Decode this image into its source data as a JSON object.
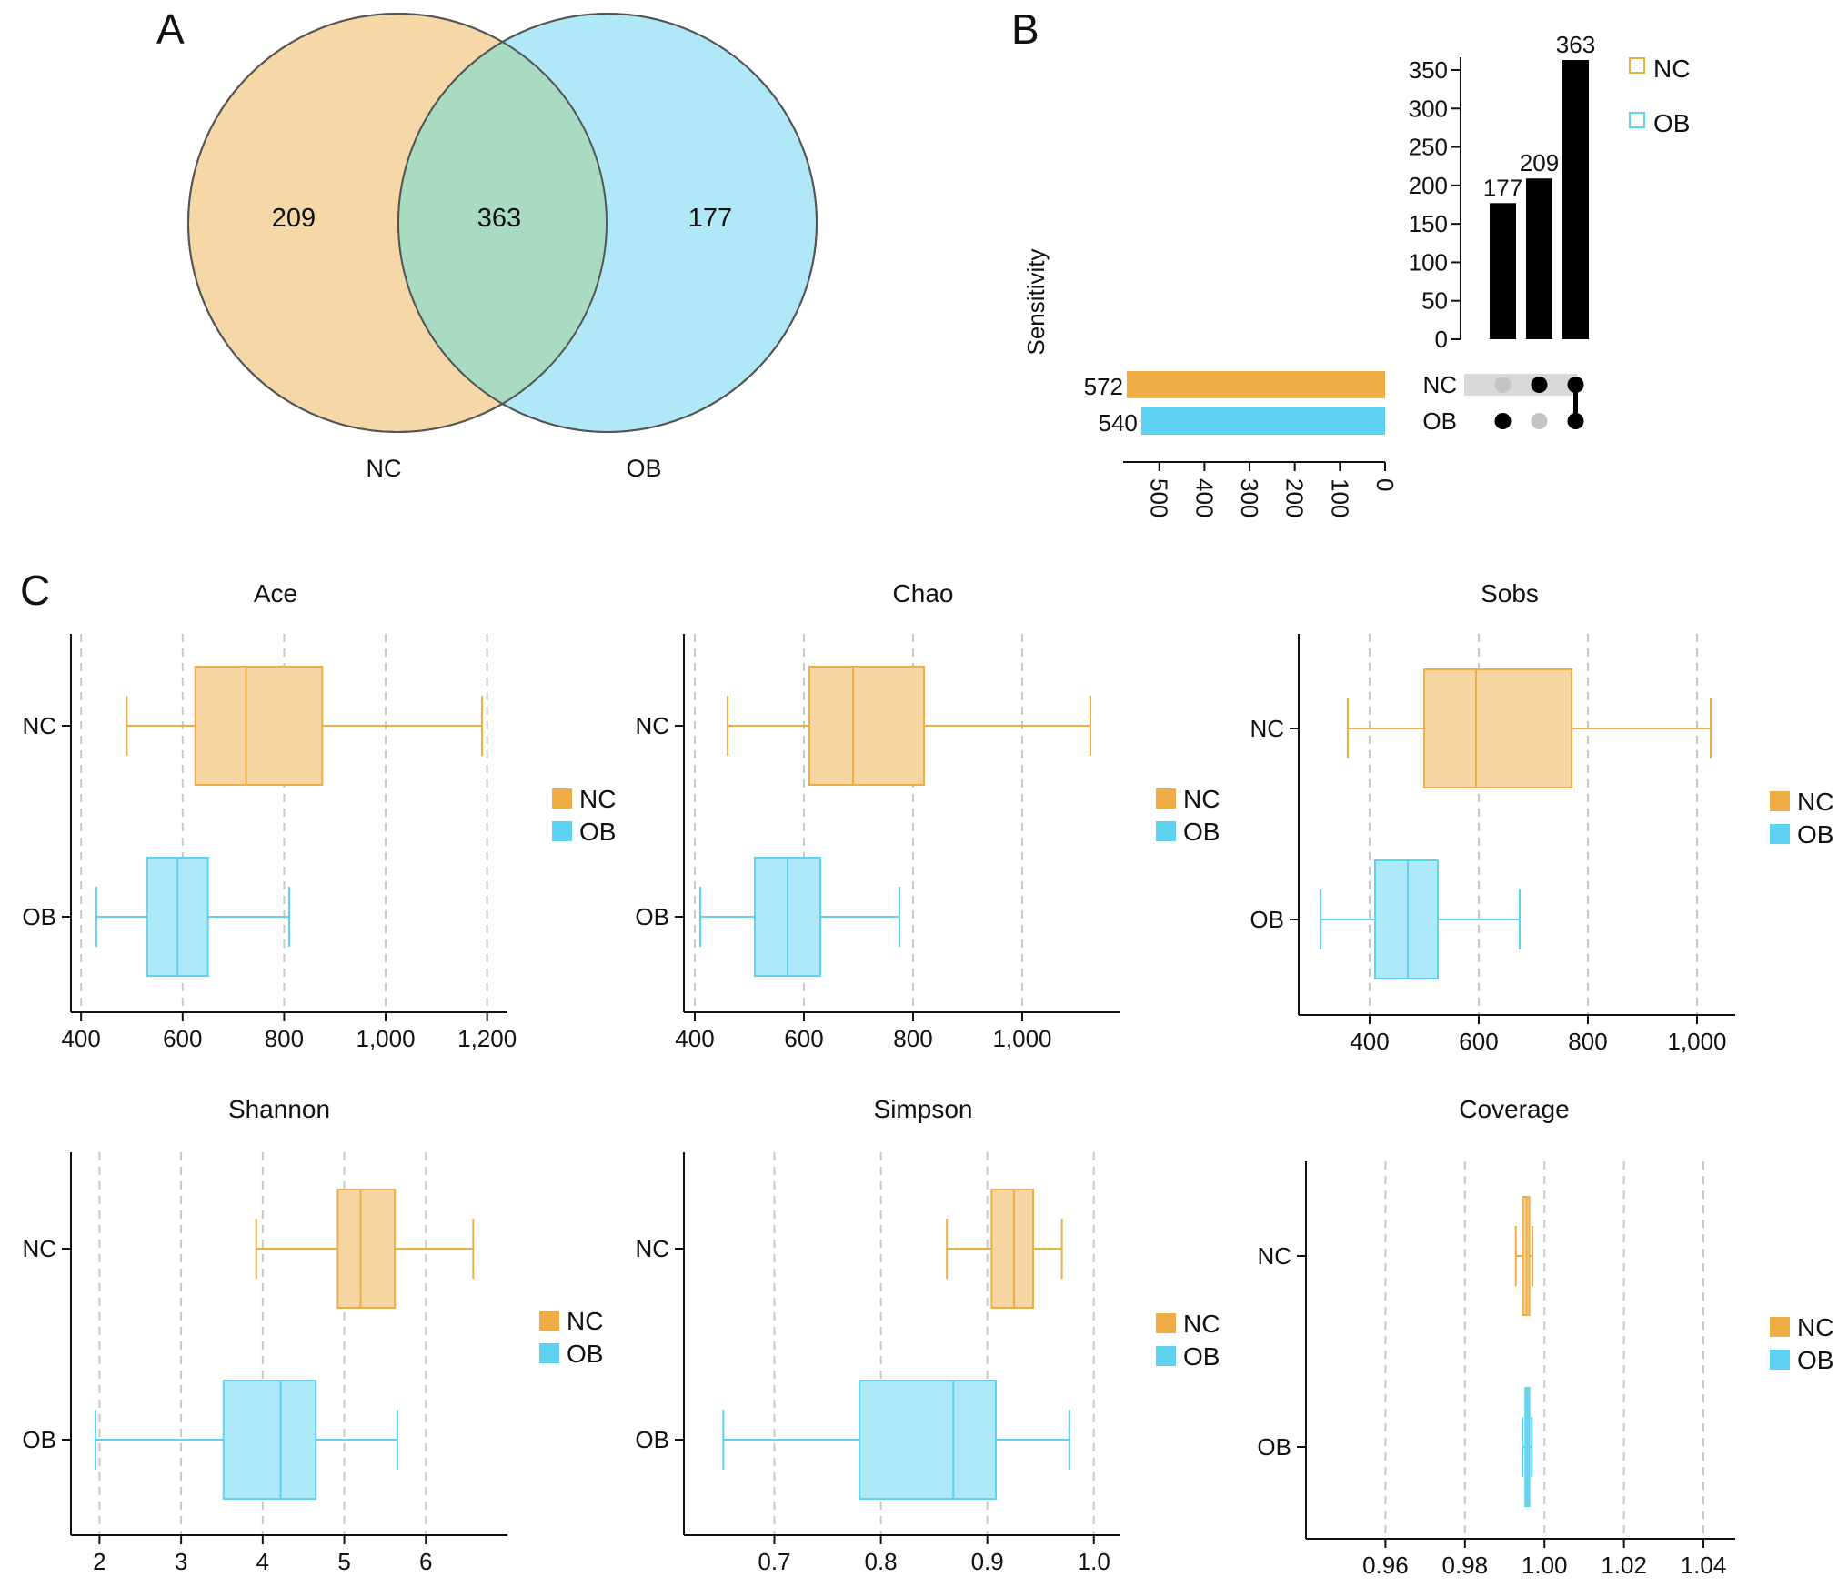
{
  "colors": {
    "nc": "#EFAE45",
    "ob": "#5DD3F1",
    "nc_fill": "#F6D6A3",
    "ob_fill": "#AEE9F7",
    "nc_venn": "#F6D8A8",
    "ob_venn": "#B0E8F7",
    "overlap": "#A9DBC3",
    "grid": "#c8c8c8",
    "text": "#111111"
  },
  "panel_labels": [
    "A",
    "B",
    "C"
  ],
  "chart_data": [
    {
      "type": "venn",
      "panel": "A",
      "sets": [
        "NC",
        "OB"
      ],
      "counts": {
        "nc_only": "209",
        "both": "363",
        "ob_only": "177"
      }
    },
    {
      "type": "upset",
      "panel": "B",
      "ylabel": "Sensitivity",
      "yticks": [
        "0",
        "50",
        "100",
        "150",
        "200",
        "250",
        "300",
        "350"
      ],
      "ylim": [
        0,
        363
      ],
      "intersections": [
        {
          "value": 177,
          "label": "177",
          "members": [
            "OB"
          ]
        },
        {
          "value": 209,
          "label": "209",
          "members": [
            "NC"
          ]
        },
        {
          "value": 363,
          "label": "363",
          "members": [
            "NC",
            "OB"
          ]
        }
      ],
      "sets": [
        {
          "name": "NC",
          "size": 572,
          "label": "572"
        },
        {
          "name": "OB",
          "size": 540,
          "label": "540"
        }
      ],
      "set_size_ticks": [
        "0",
        "100",
        "200",
        "300",
        "400",
        "500"
      ],
      "set_size_max": 572,
      "legend": [
        "NC",
        "OB"
      ]
    },
    {
      "type": "boxplot",
      "panel": "C",
      "title": "Ace",
      "xlim": [
        380,
        1240
      ],
      "ticks": [
        400,
        600,
        800,
        1000,
        1200
      ],
      "tick_labels": [
        "400",
        "600",
        "800",
        "1,000",
        "1,200"
      ],
      "groups": [
        {
          "name": "NC",
          "min": 490,
          "q1": 625,
          "median": 725,
          "q3": 875,
          "max": 1190
        },
        {
          "name": "OB",
          "min": 430,
          "q1": 530,
          "median": 590,
          "q3": 650,
          "max": 810
        }
      ],
      "legend": [
        "NC",
        "OB"
      ]
    },
    {
      "type": "boxplot",
      "panel": "C",
      "title": "Chao",
      "xlim": [
        380,
        1180
      ],
      "ticks": [
        400,
        600,
        800,
        1000
      ],
      "tick_labels": [
        "400",
        "600",
        "800",
        "1,000"
      ],
      "groups": [
        {
          "name": "NC",
          "min": 460,
          "q1": 610,
          "median": 690,
          "q3": 820,
          "max": 1125
        },
        {
          "name": "OB",
          "min": 410,
          "q1": 510,
          "median": 570,
          "q3": 630,
          "max": 775
        }
      ],
      "legend": [
        "NC",
        "OB"
      ]
    },
    {
      "type": "boxplot",
      "panel": "C",
      "title": "Sobs",
      "xlim": [
        270,
        1070
      ],
      "ticks": [
        400,
        600,
        800,
        1000
      ],
      "tick_labels": [
        "400",
        "600",
        "800",
        "1,000"
      ],
      "groups": [
        {
          "name": "NC",
          "min": 360,
          "q1": 500,
          "median": 595,
          "q3": 770,
          "max": 1025
        },
        {
          "name": "OB",
          "min": 310,
          "q1": 410,
          "median": 470,
          "q3": 525,
          "max": 675
        }
      ],
      "legend": [
        "NC",
        "OB"
      ]
    },
    {
      "type": "boxplot",
      "panel": "C",
      "title": "Shannon",
      "xlim": [
        1.65,
        7.0
      ],
      "ticks": [
        2,
        3,
        4,
        5,
        6
      ],
      "tick_labels": [
        "2",
        "3",
        "4",
        "5",
        "6"
      ],
      "groups": [
        {
          "name": "NC",
          "min": 3.92,
          "q1": 4.92,
          "median": 5.2,
          "q3": 5.62,
          "max": 6.58
        },
        {
          "name": "OB",
          "min": 1.95,
          "q1": 3.52,
          "median": 4.22,
          "q3": 4.65,
          "max": 5.65
        }
      ],
      "legend": [
        "NC",
        "OB"
      ]
    },
    {
      "type": "boxplot",
      "panel": "C",
      "title": "Simpson",
      "xlim": [
        0.615,
        1.025
      ],
      "ticks": [
        0.7,
        0.8,
        0.9,
        1.0
      ],
      "tick_labels": [
        "0.7",
        "0.8",
        "0.9",
        "1.0"
      ],
      "groups": [
        {
          "name": "NC",
          "min": 0.862,
          "q1": 0.904,
          "median": 0.925,
          "q3": 0.943,
          "max": 0.97
        },
        {
          "name": "OB",
          "min": 0.652,
          "q1": 0.78,
          "median": 0.868,
          "q3": 0.908,
          "max": 0.977
        }
      ],
      "legend": [
        "NC",
        "OB"
      ]
    },
    {
      "type": "boxplot",
      "panel": "C",
      "title": "Coverage",
      "xlim": [
        0.94,
        1.048
      ],
      "ticks": [
        0.96,
        0.98,
        1.0,
        1.02,
        1.04
      ],
      "tick_labels": [
        "0.96",
        "0.98",
        "1.00",
        "1.02",
        "1.04"
      ],
      "groups": [
        {
          "name": "NC",
          "min": 0.9928,
          "q1": 0.9946,
          "median": 0.9955,
          "q3": 0.9962,
          "max": 0.997
        },
        {
          "name": "OB",
          "min": 0.9945,
          "q1": 0.9952,
          "median": 0.9957,
          "q3": 0.9962,
          "max": 0.9968
        }
      ],
      "legend": [
        "NC",
        "OB"
      ]
    }
  ]
}
